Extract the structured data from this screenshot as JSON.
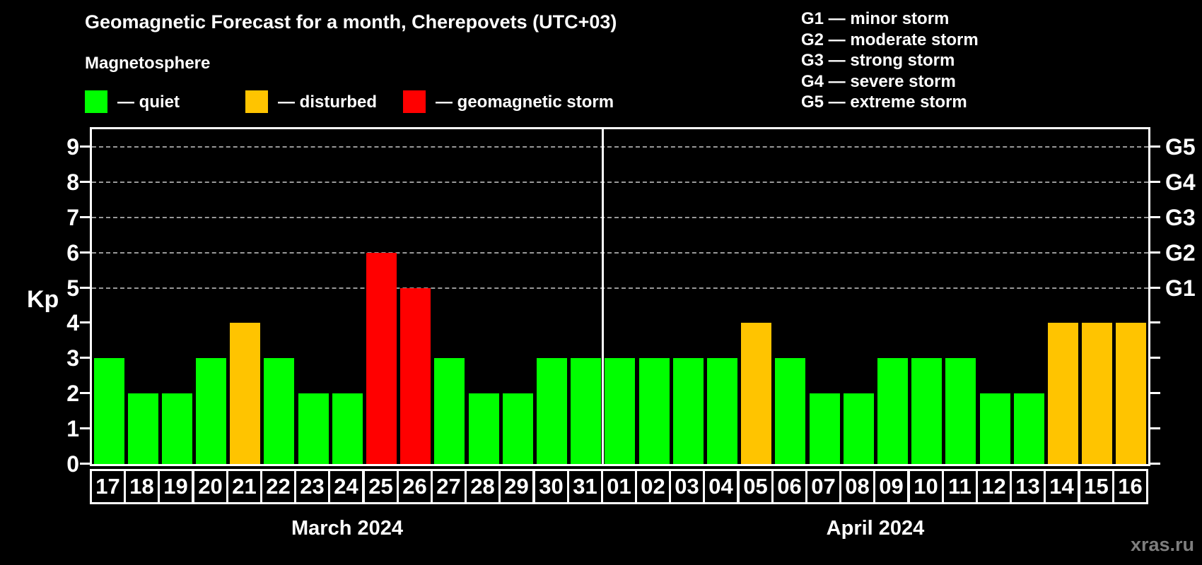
{
  "title": "Geomagnetic Forecast for a month, Cherepovets (UTC+03)",
  "subtitle": "Magnetosphere",
  "legend": {
    "quiet_label": "— quiet",
    "disturbed_label": "— disturbed",
    "storm_label": "— geomagnetic storm"
  },
  "g_legend": [
    "G1 — minor storm",
    "G2 — moderate storm",
    "G3 — strong storm",
    "G4 — severe storm",
    "G5 — extreme storm"
  ],
  "watermark": "xras.ru",
  "chart_data": {
    "type": "bar",
    "title": "Geomagnetic Forecast for a month, Cherepovets (UTC+03)",
    "ylabel": "Kp",
    "ylim": [
      0,
      9.5
    ],
    "y_ticks": [
      0,
      1,
      2,
      3,
      4,
      5,
      6,
      7,
      8,
      9
    ],
    "gridlines_at": [
      5,
      6,
      7,
      8,
      9
    ],
    "grid": "dashed horizontal at storm levels only",
    "legend_position": "top-left",
    "right_axis_labels": [
      {
        "kp": 5,
        "label": "G1"
      },
      {
        "kp": 6,
        "label": "G2"
      },
      {
        "kp": 7,
        "label": "G3"
      },
      {
        "kp": 8,
        "label": "G4"
      },
      {
        "kp": 9,
        "label": "G5"
      }
    ],
    "status_colors": {
      "quiet": "#00ff00",
      "disturbed": "#ffc400",
      "storm": "#ff0000"
    },
    "sections": [
      {
        "label": "March 2024",
        "days": [
          {
            "day": "17",
            "kp": 3,
            "status": "quiet"
          },
          {
            "day": "18",
            "kp": 2,
            "status": "quiet"
          },
          {
            "day": "19",
            "kp": 2,
            "status": "quiet"
          },
          {
            "day": "20",
            "kp": 3,
            "status": "quiet"
          },
          {
            "day": "21",
            "kp": 4,
            "status": "disturbed"
          },
          {
            "day": "22",
            "kp": 3,
            "status": "quiet"
          },
          {
            "day": "23",
            "kp": 2,
            "status": "quiet"
          },
          {
            "day": "24",
            "kp": 2,
            "status": "quiet"
          },
          {
            "day": "25",
            "kp": 6,
            "status": "storm"
          },
          {
            "day": "26",
            "kp": 5,
            "status": "storm"
          },
          {
            "day": "27",
            "kp": 3,
            "status": "quiet"
          },
          {
            "day": "28",
            "kp": 2,
            "status": "quiet"
          },
          {
            "day": "29",
            "kp": 2,
            "status": "quiet"
          },
          {
            "day": "30",
            "kp": 3,
            "status": "quiet"
          },
          {
            "day": "31",
            "kp": 3,
            "status": "quiet"
          }
        ]
      },
      {
        "label": "April 2024",
        "days": [
          {
            "day": "01",
            "kp": 3,
            "status": "quiet"
          },
          {
            "day": "02",
            "kp": 3,
            "status": "quiet"
          },
          {
            "day": "03",
            "kp": 3,
            "status": "quiet"
          },
          {
            "day": "04",
            "kp": 3,
            "status": "quiet"
          },
          {
            "day": "05",
            "kp": 4,
            "status": "disturbed"
          },
          {
            "day": "06",
            "kp": 3,
            "status": "quiet"
          },
          {
            "day": "07",
            "kp": 2,
            "status": "quiet"
          },
          {
            "day": "08",
            "kp": 2,
            "status": "quiet"
          },
          {
            "day": "09",
            "kp": 3,
            "status": "quiet"
          },
          {
            "day": "10",
            "kp": 3,
            "status": "quiet"
          },
          {
            "day": "11",
            "kp": 3,
            "status": "quiet"
          },
          {
            "day": "12",
            "kp": 2,
            "status": "quiet"
          },
          {
            "day": "13",
            "kp": 2,
            "status": "quiet"
          },
          {
            "day": "14",
            "kp": 4,
            "status": "disturbed"
          },
          {
            "day": "15",
            "kp": 4,
            "status": "disturbed"
          },
          {
            "day": "16",
            "kp": 4,
            "status": "disturbed"
          }
        ]
      }
    ]
  }
}
